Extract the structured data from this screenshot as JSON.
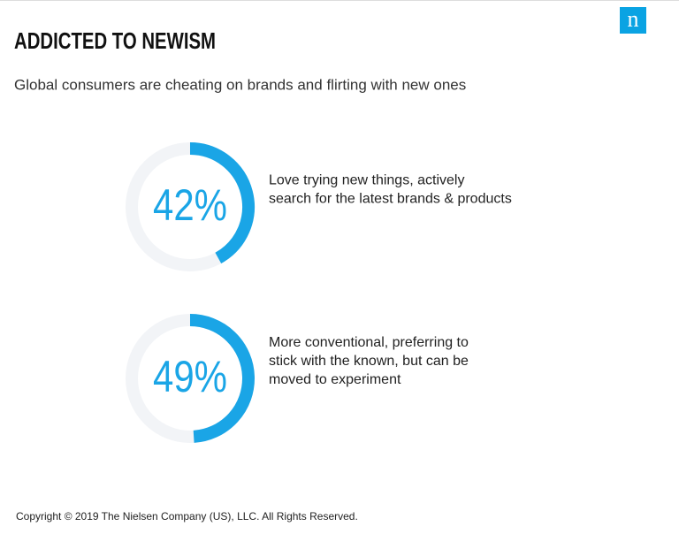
{
  "title": "ADDICTED TO NEWISM",
  "subtitle": "Global consumers are cheating on brands and flirting with new ones",
  "logo": "n",
  "chart_data": [
    {
      "type": "donut",
      "values": [
        42
      ],
      "value_labels": [
        "42%"
      ],
      "color": "#1aa5e6",
      "description": [
        "Love trying new things, actively",
        "search for the latest brands & products"
      ]
    },
    {
      "type": "donut",
      "values": [
        49
      ],
      "value_labels": [
        "49%"
      ],
      "color": "#1aa5e6",
      "description": [
        "More conventional, preferring to",
        "stick with the known, but can be",
        "moved to experiment"
      ]
    }
  ],
  "footer": "Copyright © 2019 The Nielsen Company (US), LLC. All Rights Reserved."
}
